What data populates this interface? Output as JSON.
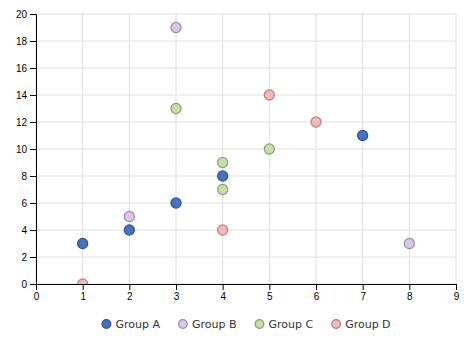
{
  "chart_data": {
    "type": "scatter",
    "series": [
      {
        "name": "Group A",
        "color": "#4472C4",
        "marker": "circle",
        "x": [
          1,
          2,
          3,
          4,
          7
        ],
        "values": [
          3,
          4,
          6,
          8,
          11
        ]
      },
      {
        "name": "Group B",
        "color": "#D9C7E8",
        "marker": "circle",
        "x": [
          2,
          3,
          8
        ],
        "values": [
          5,
          19,
          3
        ]
      },
      {
        "name": "Group C",
        "color": "#C5E0A5",
        "marker": "circle",
        "x": [
          3,
          4,
          4,
          5
        ],
        "values": [
          13,
          9,
          7,
          10
        ]
      },
      {
        "name": "Group D",
        "color": "#F4B8B8",
        "marker": "circle",
        "x": [
          1,
          4,
          5,
          6
        ],
        "values": [
          0,
          4,
          14,
          12
        ]
      }
    ],
    "xlim": [
      0,
      9
    ],
    "ylim": [
      0,
      20
    ],
    "xticks": [
      0,
      1,
      2,
      3,
      4,
      5,
      6,
      7,
      8,
      9
    ],
    "yticks": [
      0,
      2,
      4,
      6,
      8,
      10,
      12,
      14,
      16,
      18,
      20
    ],
    "grid": true,
    "legend": "bottom"
  }
}
